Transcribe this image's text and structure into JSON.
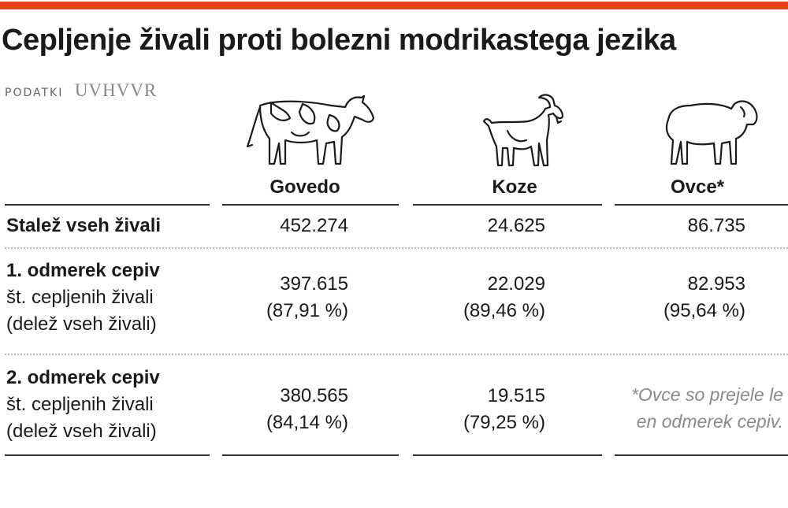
{
  "header": {
    "title": "Cepljenje živali proti bolezni modrikastega jezika",
    "source_label": "PODATKI",
    "source_org": "UVHVVR"
  },
  "columns": [
    {
      "name": "Govedo",
      "icon": "cow-icon"
    },
    {
      "name": "Koze",
      "icon": "goat-icon"
    },
    {
      "name": "Ovce*",
      "icon": "sheep-icon"
    }
  ],
  "rows": [
    {
      "title": "Stalež vseh živali",
      "values": [
        {
          "count": "452.274"
        },
        {
          "count": "24.625"
        },
        {
          "count": "86.735"
        }
      ]
    },
    {
      "title": "1. odmerek cepiv",
      "line2": "št. cepljenih živali",
      "line3": "(delež vseh živali)",
      "values": [
        {
          "count": "397.615",
          "share": "(87,91 %)"
        },
        {
          "count": "22.029",
          "share": "(89,46 %)"
        },
        {
          "count": "82.953",
          "share": "(95,64 %)"
        }
      ]
    },
    {
      "title": "2. odmerek cepiv",
      "line2": "št. cepljenih živali",
      "line3": "(delež vseh živali)",
      "values": [
        {
          "count": "380.565",
          "share": "(84,14 %)"
        },
        {
          "count": "19.515",
          "share": "(79,25 %)"
        }
      ]
    }
  ],
  "footnote": "*Ovce so prejele le en odmerek cepiv.",
  "colors": {
    "accent_bar": "#e8401c",
    "text": "#1a1a1a",
    "muted": "#8a8a8a"
  }
}
